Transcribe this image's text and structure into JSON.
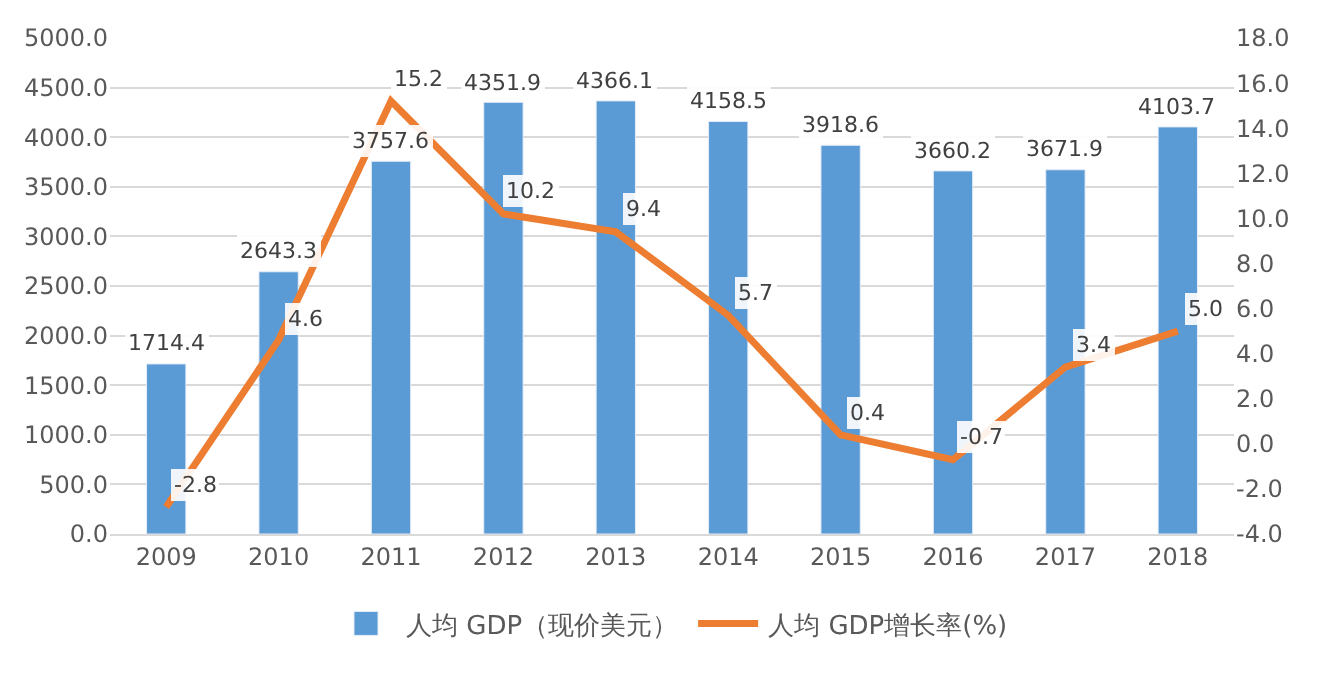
{
  "chart_data": {
    "type": "bar",
    "categories": [
      "2009",
      "2010",
      "2011",
      "2012",
      "2013",
      "2014",
      "2015",
      "2016",
      "2017",
      "2018"
    ],
    "series": [
      {
        "name": "人均 GDP（现价美元）",
        "color": "#5b9bd5",
        "values": [
          1714.4,
          2643.3,
          3757.6,
          4351.9,
          4366.1,
          4158.5,
          3918.6,
          3660.2,
          3671.9,
          4103.7
        ]
      },
      {
        "name": "人均 GDP增长率(%)",
        "type": "line",
        "axis": "y2",
        "color": "#ed7d31",
        "values": [
          -2.8,
          4.6,
          15.2,
          10.2,
          9.4,
          5.7,
          0.4,
          -0.7,
          3.4,
          5.0
        ],
        "value_labels": [
          "-2.8",
          "4.6",
          "15.2",
          "10.2",
          "9.4",
          "5.7",
          "0.4",
          "-0.7",
          "3.4",
          "5.0"
        ]
      }
    ],
    "ylim": [
      0,
      5000
    ],
    "yticks": [
      {
        "value": 0,
        "label": "0.0"
      },
      {
        "value": 500,
        "label": "500.0"
      },
      {
        "value": 1000,
        "label": "1000.0"
      },
      {
        "value": 1500,
        "label": "1500.0"
      },
      {
        "value": 2000,
        "label": "2000.0"
      },
      {
        "value": 2500,
        "label": "2500.0"
      },
      {
        "value": 3000,
        "label": "3000.0"
      },
      {
        "value": 3500,
        "label": "3500.0"
      },
      {
        "value": 4000,
        "label": "4000.0"
      },
      {
        "value": 4500,
        "label": "4500.0"
      },
      {
        "value": 5000,
        "label": "5000.0"
      }
    ],
    "y2lim": [
      -4,
      18
    ],
    "y2ticks": [
      {
        "value": -4,
        "label": "-4.0"
      },
      {
        "value": -2,
        "label": "-2.0"
      },
      {
        "value": 0,
        "label": "0.0"
      },
      {
        "value": 2,
        "label": "2.0"
      },
      {
        "value": 4,
        "label": "4.0"
      },
      {
        "value": 6,
        "label": "6.0"
      },
      {
        "value": 8,
        "label": "8.0"
      },
      {
        "value": 10,
        "label": "10.0"
      },
      {
        "value": 12,
        "label": "12.0"
      },
      {
        "value": 14,
        "label": "14.0"
      },
      {
        "value": 16,
        "label": "16.0"
      },
      {
        "value": 18,
        "label": "18.0"
      }
    ],
    "data_labels": true,
    "grid": "y",
    "legend": "bottom",
    "marker": "none",
    "line_style": "solid"
  }
}
